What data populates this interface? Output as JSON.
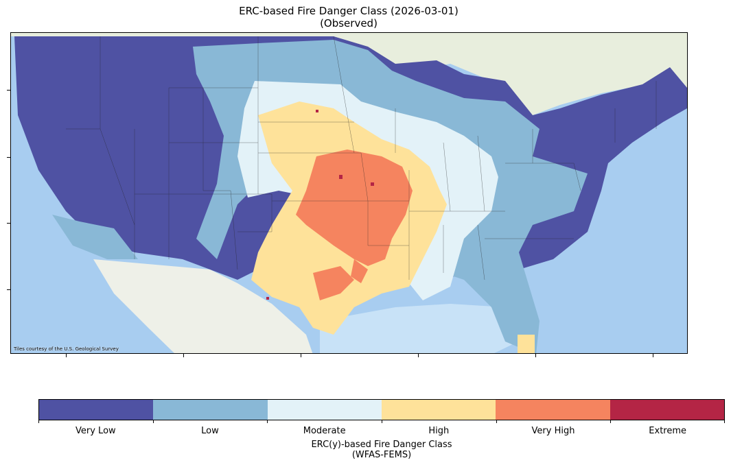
{
  "title": "ERC-based Fire Danger Class (2026-03-01)",
  "subtitle": "(Observed)",
  "attribution": "Tiles courtesy of the U.S. Geological Survey",
  "colors": {
    "very_low": "#4f52a3",
    "low": "#89b8d6",
    "moderate": "#e3f2f8",
    "high": "#fee29a",
    "very_high": "#f5845f",
    "extreme": "#b42545",
    "ocean": "#a8cdf0",
    "land": "#eef0e8"
  },
  "colorbar": {
    "classes": [
      {
        "label": "Very Low",
        "color": "#4f52a3"
      },
      {
        "label": "Low",
        "color": "#89b8d6"
      },
      {
        "label": "Moderate",
        "color": "#e3f2f8"
      },
      {
        "label": "High",
        "color": "#fee29a"
      },
      {
        "label": "Very High",
        "color": "#f5845f"
      },
      {
        "label": "Extreme",
        "color": "#b42545"
      }
    ],
    "title_line1": "ERC(y)-based Fire Danger Class",
    "title_line2": "(WFAS-FEMS)"
  }
}
